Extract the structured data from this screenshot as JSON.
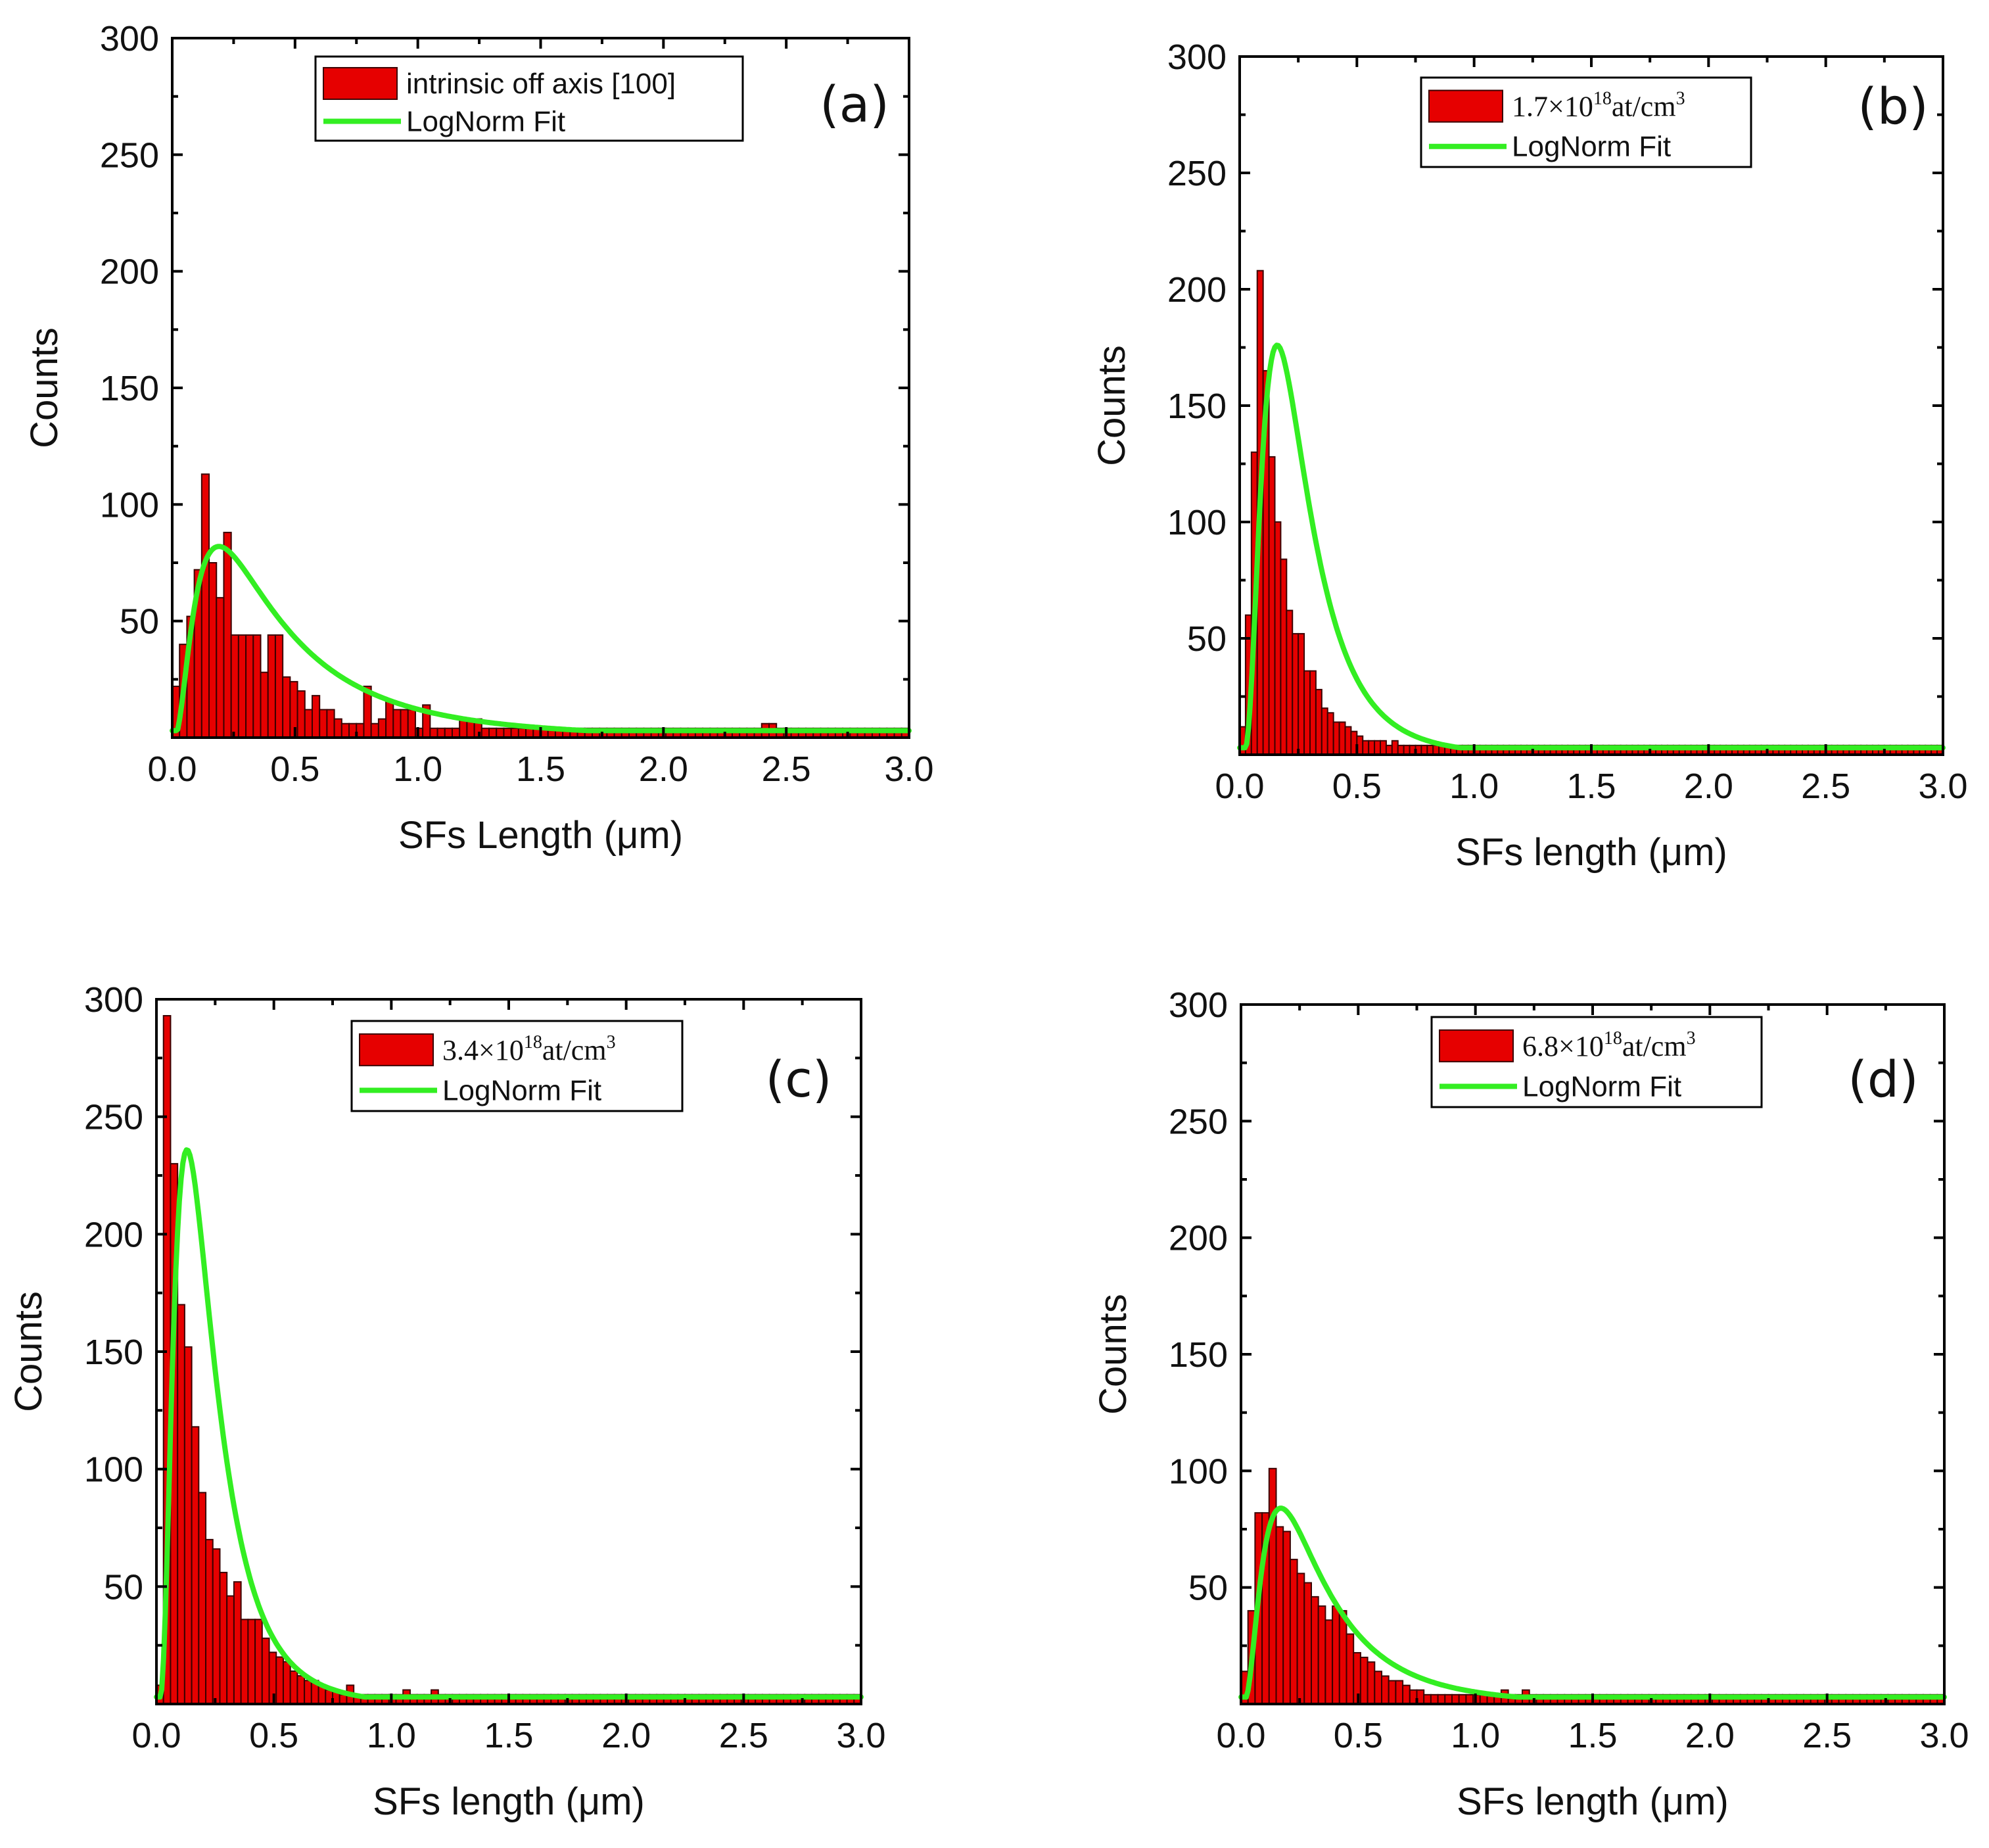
{
  "chart_data": [
    {
      "type": "bar",
      "panel": "(a)",
      "xlabel": "SFs Length (μm)",
      "ylabel": "Counts",
      "xlim": [
        0,
        3.0
      ],
      "ylim": [
        0,
        300
      ],
      "xticks": [
        "0.0",
        "0.5",
        "1.0",
        "1.5",
        "2.0",
        "2.5",
        "3.0"
      ],
      "yticks": [
        "50",
        "100",
        "150",
        "200",
        "250",
        "300"
      ],
      "legend": {
        "placement": "top-center",
        "parts": [
          {
            "text": "intrinsic off axis [100]"
          }
        ],
        "serif": false,
        "fit_label": "LogNorm Fit"
      },
      "bin_width": 0.03,
      "values": [
        22,
        40,
        52,
        72,
        113,
        75,
        60,
        88,
        44,
        44,
        44,
        44,
        28,
        44,
        44,
        26,
        24,
        20,
        12,
        18,
        12,
        12,
        8,
        6,
        6,
        6,
        22,
        6,
        8,
        16,
        12,
        12,
        12,
        4,
        14,
        4,
        4,
        4,
        4,
        8,
        8,
        8,
        4,
        4,
        4,
        4,
        4,
        4,
        4,
        4,
        4,
        4,
        4,
        4,
        4,
        4,
        4,
        4,
        4,
        4,
        4,
        4,
        4,
        4,
        4,
        4,
        4,
        4,
        4,
        4,
        4,
        4,
        4,
        4,
        4,
        4,
        4,
        4,
        4,
        4,
        6,
        6,
        4,
        4,
        4,
        4,
        4,
        4,
        4,
        4,
        4,
        4,
        4,
        4,
        4,
        4,
        4,
        4,
        4,
        4
      ],
      "fit": {
        "type": "lognormal",
        "mode": 0.19,
        "peak": 82,
        "sigma": 0.85
      }
    },
    {
      "type": "bar",
      "panel": "(b)",
      "xlabel": "SFs length (μm)",
      "ylabel": "Counts",
      "xlim": [
        0,
        3.0
      ],
      "ylim": [
        0,
        300
      ],
      "xticks": [
        "0.0",
        "0.5",
        "1.0",
        "1.5",
        "2.0",
        "2.5",
        "3.0"
      ],
      "yticks": [
        "50",
        "100",
        "150",
        "200",
        "250",
        "300"
      ],
      "legend": {
        "placement": "top-center",
        "parts": [
          {
            "text": "1.7×10"
          },
          {
            "text": "18",
            "sup": true
          },
          {
            "text": "at/cm"
          },
          {
            "text": "3",
            "sup": true
          }
        ],
        "serif": true,
        "fit_label": "LogNorm Fit"
      },
      "bin_width": 0.025,
      "values": [
        12,
        60,
        130,
        208,
        165,
        128,
        100,
        84,
        62,
        52,
        52,
        36,
        36,
        28,
        20,
        18,
        14,
        14,
        12,
        10,
        8,
        6,
        6,
        6,
        6,
        4,
        6,
        4,
        4,
        4,
        4,
        4,
        4,
        4,
        4,
        4,
        4,
        4,
        4,
        4,
        4,
        4,
        4,
        4,
        4,
        4,
        4,
        4,
        4,
        4,
        4,
        4,
        4,
        4,
        4,
        4,
        4,
        4,
        4,
        4,
        4,
        4,
        4,
        4,
        4,
        4,
        4,
        4,
        4,
        4,
        4,
        4,
        4,
        4,
        4,
        4,
        4,
        4,
        4,
        4,
        4,
        4,
        4,
        4,
        4,
        4,
        4,
        4,
        4,
        4,
        4,
        4,
        4,
        4,
        4,
        4,
        4,
        4,
        4,
        4,
        4,
        4,
        4,
        4,
        4,
        4,
        4,
        4,
        4,
        4,
        4,
        4,
        4,
        4,
        4,
        4,
        4,
        4,
        4,
        4
      ],
      "fit": {
        "type": "lognormal",
        "mode": 0.16,
        "peak": 176,
        "sigma": 0.62
      }
    },
    {
      "type": "bar",
      "panel": "(c)",
      "xlabel": "SFs length (μm)",
      "ylabel": "Counts",
      "xlim": [
        0,
        3.0
      ],
      "ylim": [
        0,
        300
      ],
      "xticks": [
        "0.0",
        "0.5",
        "1.0",
        "1.5",
        "2.0",
        "2.5",
        "3.0"
      ],
      "yticks": [
        "50",
        "100",
        "150",
        "200",
        "250",
        "300"
      ],
      "legend": {
        "placement": "top-center",
        "parts": [
          {
            "text": "3.4×10"
          },
          {
            "text": "18",
            "sup": true
          },
          {
            "text": "at/cm"
          },
          {
            "text": "3",
            "sup": true
          }
        ],
        "serif": true,
        "fit_label": "LogNorm Fit"
      },
      "bin_width": 0.03,
      "values": [
        8,
        293,
        230,
        170,
        152,
        118,
        90,
        70,
        66,
        56,
        46,
        52,
        36,
        36,
        36,
        28,
        22,
        20,
        18,
        14,
        12,
        10,
        10,
        8,
        6,
        6,
        4,
        8,
        4,
        4,
        4,
        4,
        4,
        4,
        4,
        6,
        4,
        4,
        4,
        6,
        4,
        4,
        4,
        4,
        4,
        4,
        4,
        4,
        4,
        4,
        4,
        4,
        4,
        4,
        4,
        4,
        4,
        4,
        4,
        4,
        4,
        4,
        4,
        4,
        4,
        4,
        4,
        4,
        4,
        4,
        4,
        4,
        4,
        4,
        4,
        4,
        4,
        4,
        4,
        4,
        4,
        4,
        4,
        4,
        4,
        4,
        4,
        4,
        4,
        4,
        4,
        4,
        4,
        4,
        4,
        4,
        4,
        4,
        4,
        4
      ],
      "fit": {
        "type": "lognormal",
        "mode": 0.13,
        "peak": 236,
        "sigma": 0.65
      }
    },
    {
      "type": "bar",
      "panel": "(d)",
      "xlabel": "SFs length (μm)",
      "ylabel": "Counts",
      "xlim": [
        0,
        3.0
      ],
      "ylim": [
        0,
        300
      ],
      "xticks": [
        "0.0",
        "0.5",
        "1.0",
        "1.5",
        "2.0",
        "2.5",
        "3.0"
      ],
      "yticks": [
        "50",
        "100",
        "150",
        "200",
        "250",
        "300"
      ],
      "legend": {
        "placement": "top-center",
        "parts": [
          {
            "text": "6.8×10"
          },
          {
            "text": "18",
            "sup": true
          },
          {
            "text": "at/cm"
          },
          {
            "text": "3",
            "sup": true
          }
        ],
        "serif": true,
        "fit_label": "LogNorm Fit"
      },
      "bin_width": 0.03,
      "values": [
        14,
        40,
        82,
        82,
        101,
        76,
        74,
        62,
        56,
        52,
        46,
        42,
        36,
        42,
        40,
        30,
        22,
        20,
        18,
        14,
        12,
        10,
        10,
        8,
        6,
        6,
        4,
        4,
        4,
        4,
        4,
        4,
        4,
        4,
        4,
        4,
        4,
        6,
        4,
        4,
        6,
        4,
        4,
        4,
        4,
        4,
        4,
        4,
        4,
        4,
        4,
        4,
        4,
        4,
        4,
        4,
        4,
        4,
        4,
        4,
        4,
        4,
        4,
        4,
        4,
        4,
        4,
        4,
        4,
        4,
        4,
        4,
        4,
        4,
        4,
        4,
        4,
        4,
        4,
        4,
        4,
        4,
        4,
        4,
        4,
        4,
        4,
        4,
        4,
        4,
        4,
        4,
        4,
        4,
        4,
        4,
        4,
        4,
        4,
        4
      ],
      "fit": {
        "type": "lognormal",
        "mode": 0.17,
        "peak": 84,
        "sigma": 0.75
      }
    }
  ]
}
